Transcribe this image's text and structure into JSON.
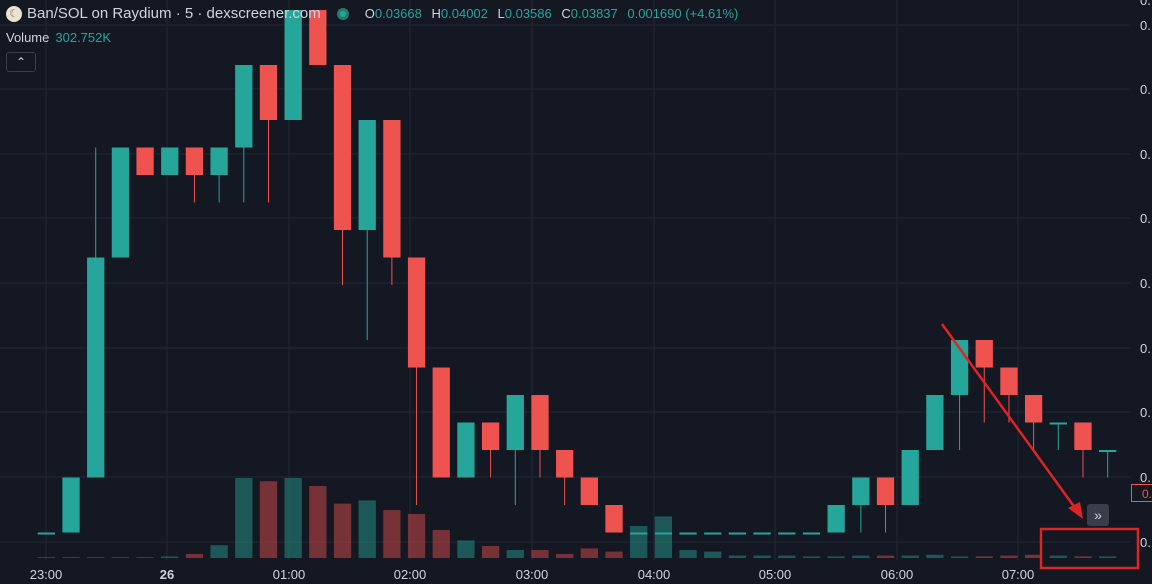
{
  "header": {
    "pair": "Ban/SOL on Raydium · 5 · dexscreener.com",
    "o_label": "O",
    "o_value": "0.03668",
    "h_label": "H",
    "h_value": "0.04002",
    "l_label": "L",
    "l_value": "0.03586",
    "c_label": "C",
    "c_value": "0.03837",
    "change": "0.001690 (+4.61%)"
  },
  "volume": {
    "label": "Volume",
    "value": "302.752K"
  },
  "controls": {
    "collapse_icon": "chevron-up-icon",
    "scroll_icon": "double-chevron-right-icon"
  },
  "price_axis": {
    "labels": [
      "0.",
      "0.",
      "0.",
      "0.",
      "0.",
      "0.",
      "0.",
      "0.",
      "0.",
      "0."
    ],
    "current_price_tag": "0."
  },
  "annotation": {
    "arrow_color": "#e02424",
    "box_color": "#e02424"
  },
  "colors": {
    "up": "#26a69a",
    "down": "#ef5350",
    "background": "#141823",
    "grid": "#232734"
  },
  "chart_data": {
    "type": "candlestick",
    "title": "Ban/SOL on Raydium · 5 · dexscreener.com",
    "x_ticks": [
      "23:00",
      "26",
      "01:00",
      "02:00",
      "03:00",
      "04:00",
      "05:00",
      "06:00",
      "07:00"
    ],
    "interval_minutes": 5,
    "ohlc_series": [
      [
        0.031,
        0.031,
        0.031,
        0.031
      ],
      [
        0.031,
        0.033,
        0.031,
        0.033
      ],
      [
        0.033,
        0.041,
        0.033,
        0.045
      ],
      [
        0.041,
        0.045,
        0.041,
        0.045
      ],
      [
        0.045,
        0.044,
        0.044,
        0.044
      ],
      [
        0.044,
        0.045,
        0.044,
        0.045
      ],
      [
        0.045,
        0.044,
        0.043,
        0.044
      ],
      [
        0.044,
        0.045,
        0.043,
        0.045
      ],
      [
        0.045,
        0.048,
        0.043,
        0.048
      ],
      [
        0.048,
        0.046,
        0.043,
        0.046
      ],
      [
        0.046,
        0.05,
        0.046,
        0.05
      ],
      [
        0.05,
        0.048,
        0.048,
        0.048
      ],
      [
        0.048,
        0.042,
        0.04,
        0.042
      ],
      [
        0.042,
        0.046,
        0.038,
        0.046
      ],
      [
        0.046,
        0.041,
        0.04,
        0.041
      ],
      [
        0.041,
        0.037,
        0.032,
        0.037
      ],
      [
        0.037,
        0.033,
        0.033,
        0.033
      ],
      [
        0.033,
        0.035,
        0.033,
        0.035
      ],
      [
        0.035,
        0.034,
        0.033,
        0.034
      ],
      [
        0.034,
        0.036,
        0.032,
        0.036
      ],
      [
        0.036,
        0.034,
        0.033,
        0.034
      ],
      [
        0.034,
        0.033,
        0.032,
        0.033
      ],
      [
        0.033,
        0.032,
        0.032,
        0.032
      ],
      [
        0.032,
        0.031,
        0.031,
        0.031
      ],
      [
        0.031,
        0.031,
        0.031,
        0.031
      ],
      [
        0.031,
        0.031,
        0.031,
        0.031
      ],
      [
        0.031,
        0.031,
        0.031,
        0.031
      ],
      [
        0.031,
        0.031,
        0.031,
        0.031
      ],
      [
        0.031,
        0.031,
        0.031,
        0.031
      ],
      [
        0.031,
        0.031,
        0.031,
        0.031
      ],
      [
        0.031,
        0.031,
        0.031,
        0.031
      ],
      [
        0.031,
        0.031,
        0.031,
        0.031
      ],
      [
        0.031,
        0.032,
        0.031,
        0.032
      ],
      [
        0.032,
        0.033,
        0.031,
        0.033
      ],
      [
        0.033,
        0.032,
        0.031,
        0.032
      ],
      [
        0.032,
        0.034,
        0.032,
        0.034
      ],
      [
        0.034,
        0.036,
        0.034,
        0.036
      ],
      [
        0.036,
        0.038,
        0.034,
        0.038
      ],
      [
        0.038,
        0.037,
        0.035,
        0.037
      ],
      [
        0.037,
        0.036,
        0.035,
        0.036
      ],
      [
        0.036,
        0.035,
        0.034,
        0.035
      ],
      [
        0.035,
        0.035,
        0.034,
        0.035
      ],
      [
        0.035,
        0.034,
        0.033,
        0.034
      ],
      [
        0.034,
        0.034,
        0.033,
        0.034
      ]
    ],
    "volume_series": [
      1,
      1,
      1,
      1,
      1,
      2,
      5,
      16,
      100,
      96,
      100,
      90,
      68,
      72,
      60,
      55,
      35,
      22,
      15,
      10,
      10,
      5,
      12,
      8,
      40,
      52,
      10,
      8,
      3,
      3,
      3,
      2,
      2,
      3,
      3,
      3,
      4,
      2,
      2,
      3,
      4,
      3,
      2,
      2
    ],
    "y_axis_note": "price labels truncated at right edge"
  }
}
